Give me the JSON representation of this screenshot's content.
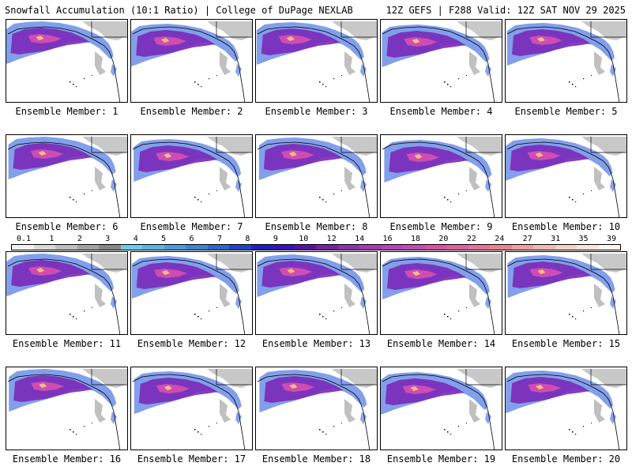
{
  "header": {
    "title_left": "Snowfall Accumulation (10:1 Ratio) | College of DuPage NEXLAB",
    "title_right": "12Z GEFS | F288 Valid: 12Z SAT NOV 29 2025"
  },
  "panels": [
    {
      "label": "Ensemble Member: 1"
    },
    {
      "label": "Ensemble Member: 2"
    },
    {
      "label": "Ensemble Member: 3"
    },
    {
      "label": "Ensemble Member: 4"
    },
    {
      "label": "Ensemble Member: 5"
    },
    {
      "label": "Ensemble Member: 6"
    },
    {
      "label": "Ensemble Member: 7"
    },
    {
      "label": "Ensemble Member: 8"
    },
    {
      "label": "Ensemble Member: 9"
    },
    {
      "label": "Ensemble Member: 10"
    },
    {
      "label": "Ensemble Member: 11"
    },
    {
      "label": "Ensemble Member: 12"
    },
    {
      "label": "Ensemble Member: 13"
    },
    {
      "label": "Ensemble Member: 14"
    },
    {
      "label": "Ensemble Member: 15"
    },
    {
      "label": "Ensemble Member: 16"
    },
    {
      "label": "Ensemble Member: 17"
    },
    {
      "label": "Ensemble Member: 18"
    },
    {
      "label": "Ensemble Member: 19"
    },
    {
      "label": "Ensemble Member: 20"
    }
  ],
  "colorbar": {
    "labels": [
      "0.1",
      "1",
      "2",
      "3",
      "4",
      "5",
      "6",
      "7",
      "8",
      "9",
      "10",
      "12",
      "14",
      "16",
      "18",
      "20",
      "22",
      "24",
      "27",
      "31",
      "35",
      "39"
    ],
    "colors": [
      "#f2f2f2",
      "#d8d8d8",
      "#bdbdbd",
      "#a2a2a2",
      "#878787",
      "#6cccf0",
      "#59b4e8",
      "#4a9ce0",
      "#3a84d8",
      "#2e66d0",
      "#2044c8",
      "#1a22c0",
      "#3a10c0",
      "#5a10a8",
      "#7a20a8",
      "#9030b0",
      "#a838b8",
      "#b840c0",
      "#c848b8",
      "#d850a8",
      "#e060a0",
      "#e87098",
      "#f08090",
      "#f0a0a0",
      "#f0b8b0",
      "#f8d0c0",
      "#fce4d8",
      "#fff4ec"
    ]
  }
}
